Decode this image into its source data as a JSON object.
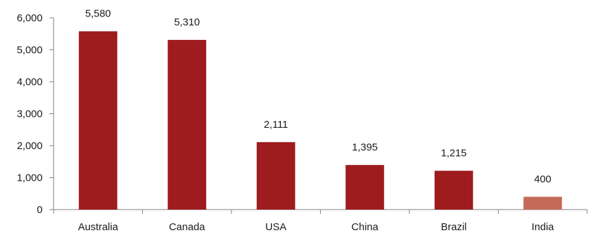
{
  "chart_data": {
    "type": "bar",
    "categories": [
      "Australia",
      "Canada",
      "USA",
      "China",
      "Brazil",
      "India"
    ],
    "values": [
      5580,
      5310,
      2111,
      1395,
      1215,
      400
    ],
    "value_labels": [
      "5,580",
      "5,310",
      "2,111",
      "1,395",
      "1,215",
      "400"
    ],
    "ylim": [
      0,
      6000
    ],
    "yticks": [
      0,
      1000,
      2000,
      3000,
      4000,
      5000,
      6000
    ],
    "ytick_labels": [
      "0",
      "1,000",
      "2,000",
      "3,000",
      "4,000",
      "5,000",
      "6,000"
    ],
    "title": "",
    "xlabel": "",
    "ylabel": "",
    "grid": false,
    "bar_colors": [
      "#9e1b1e",
      "#9e1b1e",
      "#9e1b1e",
      "#9e1b1e",
      "#9e1b1e",
      "#c46a57"
    ],
    "axis_color": "#7f7f7f"
  }
}
